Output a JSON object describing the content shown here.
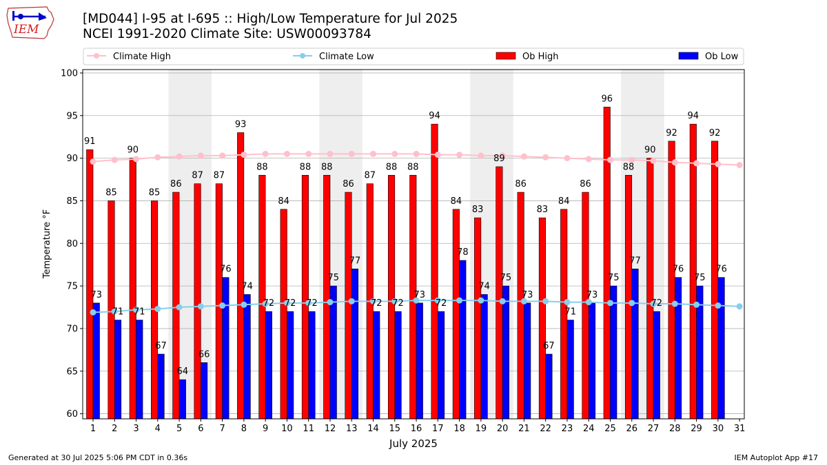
{
  "header": {
    "logo_text": "IEM",
    "title": "[MD044] I-95 at I-695 :: High/Low Temperature for Jul 2025",
    "subtitle": "NCEI 1991-2020 Climate Site: USW00093784"
  },
  "footer": {
    "generated": "Generated at 30 Jul 2025 5:06 PM CDT in 0.36s",
    "app": "IEM Autoplot App #17"
  },
  "colors": {
    "ob_high": "#ff0000",
    "ob_low": "#0000ff",
    "climate_high": "#ffc0cb",
    "climate_low": "#87ceeb",
    "weekend_band": "#eeeeee",
    "grid": "#b0b0b0"
  },
  "chart_data": {
    "type": "bar",
    "title": "[MD044] I-95 at I-695 :: High/Low Temperature for Jul 2025",
    "xlabel": "July 2025",
    "ylabel": "Temperature °F",
    "ylim": [
      59.4,
      100.4
    ],
    "yticks": [
      60,
      65,
      70,
      75,
      80,
      85,
      90,
      95,
      100
    ],
    "grid": true,
    "legend_position": "top",
    "categories": [
      "1",
      "2",
      "3",
      "4",
      "5",
      "6",
      "7",
      "8",
      "9",
      "10",
      "11",
      "12",
      "13",
      "14",
      "15",
      "16",
      "17",
      "18",
      "19",
      "20",
      "21",
      "22",
      "23",
      "24",
      "25",
      "26",
      "27",
      "28",
      "29",
      "30",
      "31"
    ],
    "shaded_days": [
      [
        5,
        6
      ],
      [
        12,
        13
      ],
      [
        19,
        20
      ],
      [
        26,
        27
      ]
    ],
    "series": [
      {
        "name": "Ob High",
        "kind": "bar",
        "values": [
          91,
          85,
          90,
          85,
          86,
          87,
          87,
          93,
          88,
          84,
          88,
          88,
          86,
          87,
          88,
          88,
          94,
          84,
          83,
          89,
          86,
          83,
          84,
          86,
          96,
          88,
          90,
          92,
          94,
          92,
          null
        ]
      },
      {
        "name": "Ob Low",
        "kind": "bar",
        "values": [
          73,
          71,
          71,
          67,
          64,
          66,
          76,
          74,
          72,
          72,
          72,
          75,
          77,
          72,
          72,
          73,
          72,
          78,
          74,
          75,
          73,
          67,
          71,
          73,
          75,
          77,
          72,
          76,
          75,
          76,
          null
        ]
      },
      {
        "name": "Climate High",
        "kind": "line",
        "values": [
          89.6,
          89.8,
          89.9,
          90.1,
          90.2,
          90.3,
          90.3,
          90.4,
          90.5,
          90.5,
          90.5,
          90.5,
          90.5,
          90.5,
          90.5,
          90.5,
          90.4,
          90.4,
          90.3,
          90.3,
          90.2,
          90.1,
          90.0,
          89.9,
          89.8,
          89.8,
          89.7,
          89.5,
          89.4,
          89.3,
          89.2
        ]
      },
      {
        "name": "Climate Low",
        "kind": "line",
        "values": [
          71.9,
          72.0,
          72.2,
          72.3,
          72.5,
          72.6,
          72.7,
          72.8,
          72.9,
          73.0,
          73.0,
          73.1,
          73.2,
          73.2,
          73.2,
          73.3,
          73.3,
          73.3,
          73.3,
          73.2,
          73.2,
          73.2,
          73.1,
          73.1,
          73.0,
          73.0,
          72.9,
          72.9,
          72.8,
          72.7,
          72.6
        ]
      }
    ],
    "bar_labels": {
      "high": [
        "91",
        "85",
        "90",
        "85",
        "86",
        "87",
        "87",
        "93",
        "88",
        "84",
        "88",
        "88",
        "86",
        "87",
        "88",
        "88",
        "94",
        "84",
        "83",
        "89",
        "86",
        "83",
        "84",
        "86",
        "96",
        "88",
        "90",
        "92",
        "94",
        "92",
        ""
      ],
      "low": [
        "73",
        "71",
        "71",
        "67",
        "64",
        "66",
        "76",
        "74",
        "72",
        "72",
        "72",
        "75",
        "77",
        "72",
        "72",
        "73",
        "72",
        "78",
        "74",
        "75",
        "73",
        "67",
        "71",
        "73",
        "75",
        "77",
        "72",
        "76",
        "75",
        "76",
        ""
      ]
    }
  }
}
